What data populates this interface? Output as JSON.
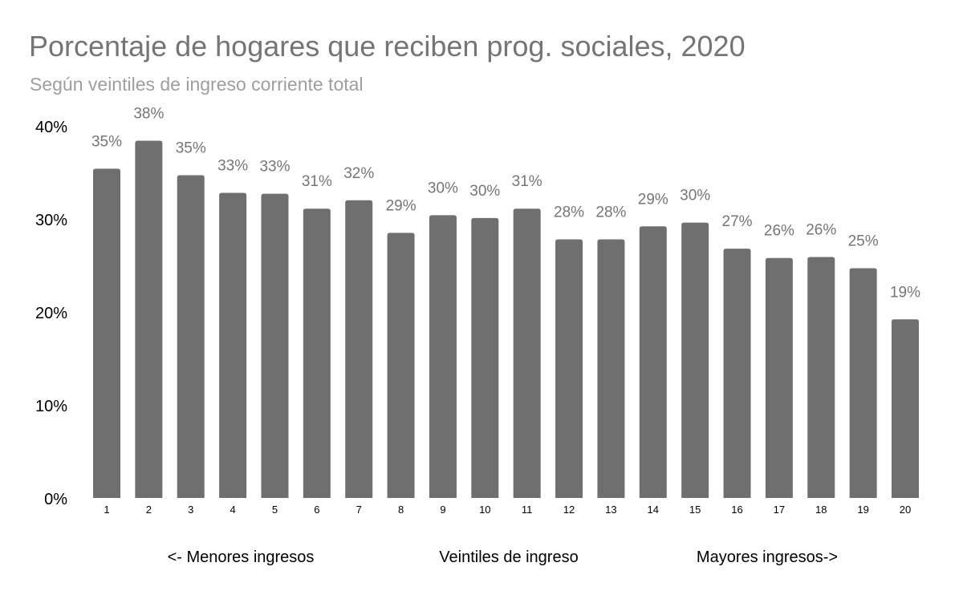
{
  "chart_data": {
    "type": "bar",
    "title": "Porcentaje de hogares que reciben prog. sociales, 2020",
    "subtitle": "Según veintiles de ingreso corriente total",
    "xlabel": "Veintiles de ingreso",
    "x_annotations": {
      "left": "<- Menores ingresos",
      "right": "Mayores ingresos->"
    },
    "ylabel": "",
    "ylim": [
      0,
      40
    ],
    "y_ticks": [
      "0%",
      "10%",
      "20%",
      "30%",
      "40%"
    ],
    "grid": false,
    "categories": [
      "1",
      "2",
      "3",
      "4",
      "5",
      "6",
      "7",
      "8",
      "9",
      "10",
      "11",
      "12",
      "13",
      "14",
      "15",
      "16",
      "17",
      "18",
      "19",
      "20"
    ],
    "values": [
      35.4,
      38.4,
      34.7,
      32.8,
      32.7,
      31.1,
      32.0,
      28.5,
      30.4,
      30.1,
      31.1,
      27.8,
      27.8,
      29.2,
      29.6,
      26.8,
      25.8,
      25.9,
      24.7,
      19.2
    ],
    "data_labels": [
      "35%",
      "38%",
      "35%",
      "33%",
      "33%",
      "31%",
      "32%",
      "29%",
      "30%",
      "30%",
      "31%",
      "28%",
      "28%",
      "29%",
      "30%",
      "27%",
      "26%",
      "26%",
      "25%",
      "19%"
    ],
    "bar_color": "#6f6f6f"
  }
}
